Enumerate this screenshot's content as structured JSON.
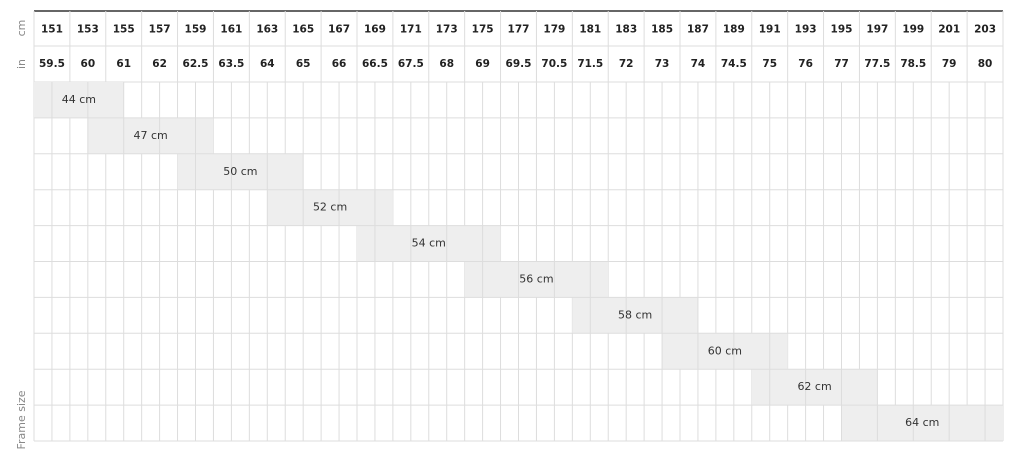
{
  "chart_data": {
    "type": "range",
    "x_label": "cm",
    "x2_label": "in",
    "y_label": "Frame size",
    "xlim": [
      150,
      204
    ],
    "xticks": [
      151,
      153,
      155,
      157,
      159,
      161,
      163,
      165,
      167,
      169,
      171,
      173,
      175,
      177,
      179,
      181,
      183,
      185,
      187,
      189,
      191,
      193,
      195,
      197,
      199,
      201,
      203
    ],
    "x2ticks": [
      59.5,
      60,
      61,
      62,
      62.5,
      63.5,
      64,
      65,
      66,
      66.5,
      67.5,
      68,
      69,
      69.5,
      70.5,
      71.5,
      72,
      73,
      74,
      74.5,
      75,
      76,
      77,
      77.5,
      78.5,
      79,
      80
    ],
    "categories": [
      "44 cm",
      "47 cm",
      "50 cm",
      "52 cm",
      "54 cm",
      "56 cm",
      "58 cm",
      "60 cm",
      "62 cm",
      "64 cm"
    ],
    "values": [
      [
        150,
        155
      ],
      [
        153,
        160
      ],
      [
        158,
        165
      ],
      [
        163,
        170
      ],
      [
        168,
        176
      ],
      [
        174,
        182
      ],
      [
        180,
        187
      ],
      [
        185,
        192
      ],
      [
        190,
        197
      ],
      [
        195,
        204
      ]
    ],
    "color": "#eeeeee"
  }
}
